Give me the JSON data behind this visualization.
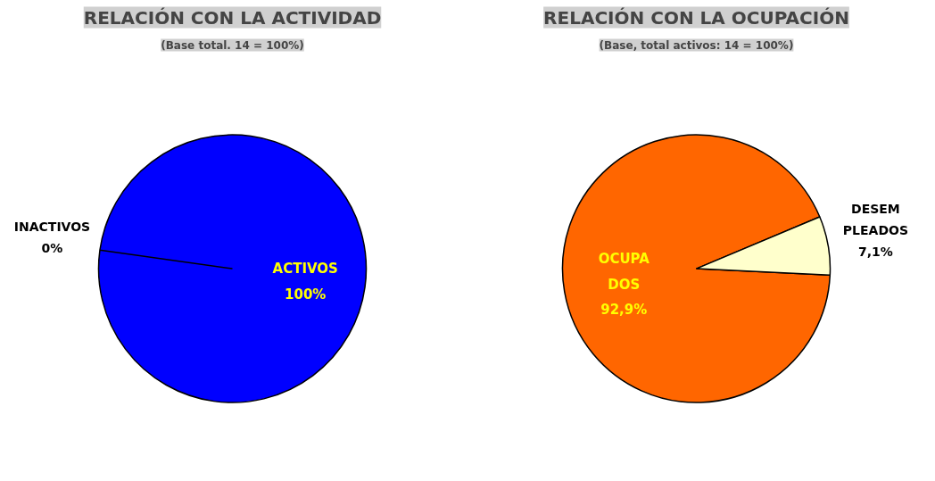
{
  "chart_data": [
    {
      "type": "pie",
      "title": "RELACIÓN CON LA ACTIVIDAD",
      "subtitle": "(Base total. 14 = 100%)",
      "categories": [
        "INACTIVOS",
        "ACTIVOS"
      ],
      "values": [
        0,
        100
      ],
      "colors": [
        "#0000ff",
        "#0000ff"
      ],
      "value_labels": [
        "0%",
        "100%"
      ]
    },
    {
      "type": "pie",
      "title": "RELACIÓN CON LA OCUPACIÓN",
      "subtitle": "(Base, total activos: 14 = 100%)",
      "categories": [
        "OCUPA\nDOS",
        "DESEM\nPLEADOS"
      ],
      "values": [
        92.9,
        7.1
      ],
      "colors": [
        "#ff6600",
        "#ffffcc"
      ],
      "value_labels": [
        "92,9%",
        "7,1%"
      ]
    }
  ]
}
